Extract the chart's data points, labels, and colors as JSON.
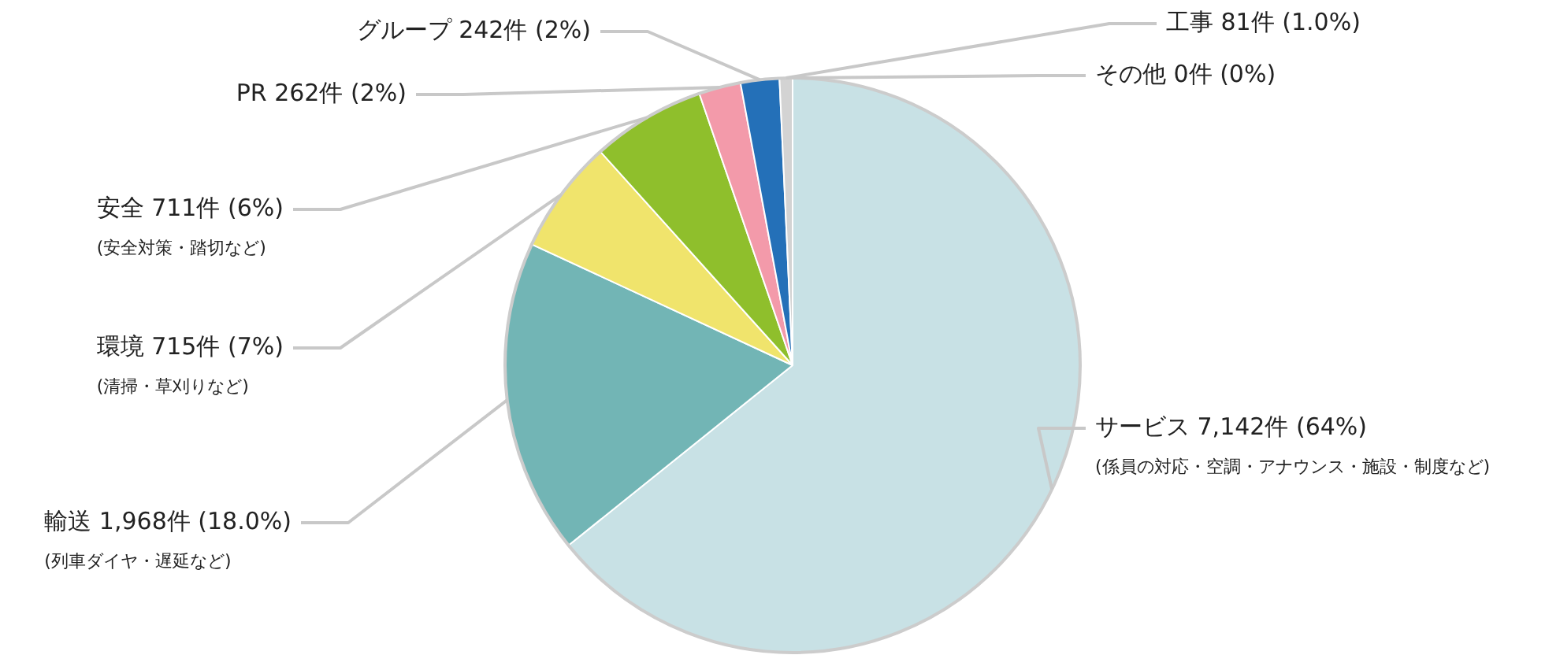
{
  "chart_data": {
    "type": "pie",
    "categories": [
      "サービス",
      "輸送",
      "環境",
      "安全",
      "PR",
      "グループ",
      "工事",
      "その他"
    ],
    "values": [
      7142,
      1968,
      715,
      711,
      262,
      242,
      81,
      0
    ],
    "value_labels": [
      "7,142件 (64%)",
      "1,968件 (18.0%)",
      "715件 (7%)",
      "711件 (6%)",
      "262件 (2%)",
      "242件 (2%)",
      "81件 (1.0%)",
      "0件 (0%)"
    ],
    "colors": [
      "#c8e1e5",
      "#72b5b5",
      "#f0e46c",
      "#8fbf2c",
      "#f39aaa",
      "#2470b8",
      "#d3d3d3",
      "#eeeeee"
    ],
    "annotations": [
      {
        "text": "(係員の対応・空調・アナウンス・施設・制度など)",
        "x": "サービス"
      },
      {
        "text": "(列車ダイヤ・遅延など)",
        "x": "輸送"
      },
      {
        "text": "(清掃・草刈りなど)",
        "x": "環境"
      },
      {
        "text": "(安全対策・踏切など)",
        "x": "安全"
      }
    ],
    "legend": false
  }
}
